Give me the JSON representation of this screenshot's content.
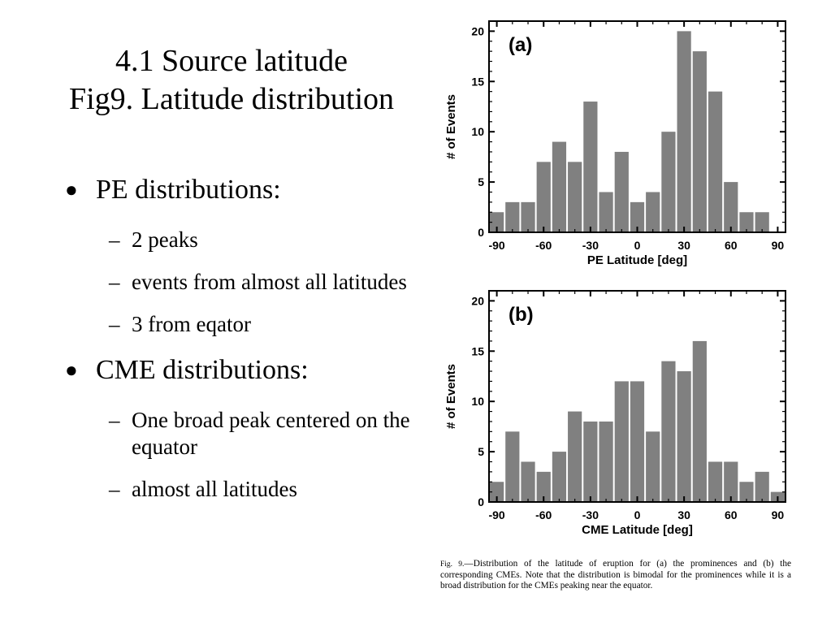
{
  "title": {
    "line1": "4.1 Source latitude",
    "line2": "Fig9. Latitude distribution"
  },
  "bullets": [
    {
      "label": "PE distributions:",
      "subs": [
        "2 peaks",
        "events from almost all latitudes",
        "3 from eqator"
      ]
    },
    {
      "label": "CME distributions:",
      "subs": [
        "One broad peak centered on the equator",
        "almost all latitudes"
      ]
    }
  ],
  "bullet_glyph": "●",
  "dash_glyph": "–",
  "caption": {
    "fig_label": "Fig. 9.",
    "text": "—Distribution of the latitude of eruption for (a) the prominences and (b) the corresponding CMEs. Note that the distribution is bimodal for the prominences while it is a broad distribution for the CMEs peaking near the equator."
  },
  "chart_data": [
    {
      "type": "bar",
      "panel_label": "(a)",
      "xlabel": "PE Latitude [deg]",
      "ylabel": "# of Events",
      "xlim": [
        -95,
        95
      ],
      "ylim": [
        0,
        21
      ],
      "xticks": [
        -90,
        -60,
        -30,
        0,
        30,
        60,
        90
      ],
      "yticks": [
        0,
        5,
        10,
        15,
        20
      ],
      "bin_width": 10,
      "bin_centers": [
        -90,
        -80,
        -70,
        -60,
        -50,
        -40,
        -30,
        -20,
        -10,
        0,
        10,
        20,
        30,
        40,
        50,
        60,
        70,
        80
      ],
      "values": [
        2,
        3,
        3,
        7,
        9,
        7,
        13,
        4,
        8,
        3,
        4,
        10,
        20,
        18,
        14,
        5,
        2,
        2
      ],
      "bar_color": "#808080",
      "grid": false
    },
    {
      "type": "bar",
      "panel_label": "(b)",
      "xlabel": "CME Latitude [deg]",
      "ylabel": "# of Events",
      "xlim": [
        -95,
        95
      ],
      "ylim": [
        0,
        21
      ],
      "xticks": [
        -90,
        -60,
        -30,
        0,
        30,
        60,
        90
      ],
      "yticks": [
        0,
        5,
        10,
        15,
        20
      ],
      "bin_width": 10,
      "bin_centers": [
        -90,
        -80,
        -70,
        -60,
        -50,
        -40,
        -30,
        -20,
        -10,
        0,
        10,
        20,
        30,
        40,
        50,
        60,
        70,
        80,
        90
      ],
      "values": [
        2,
        7,
        4,
        3,
        5,
        9,
        8,
        8,
        12,
        12,
        7,
        14,
        13,
        16,
        4,
        4,
        2,
        3,
        1
      ],
      "bar_color": "#808080",
      "grid": false
    }
  ]
}
